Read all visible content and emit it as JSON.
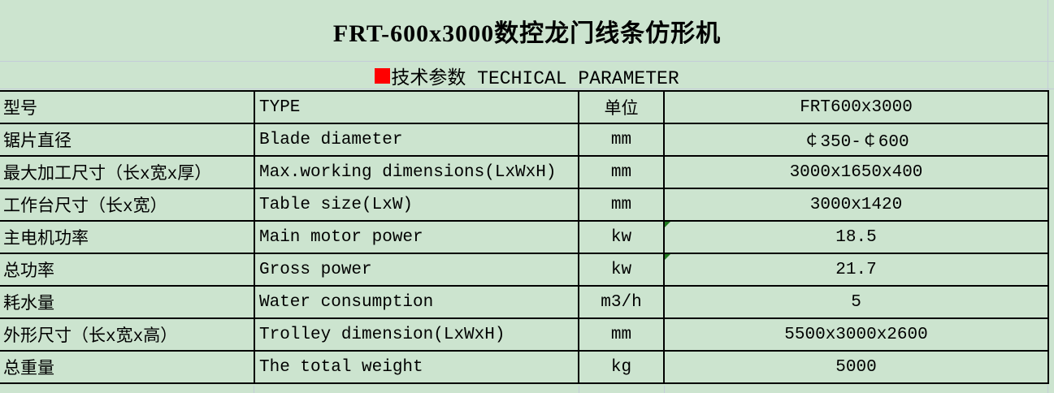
{
  "window": {
    "title": "FRT-600x3000数控龙门线条仿形机"
  },
  "section": {
    "marker_icon": "red-square",
    "label": "技术参数 TECHICAL PARAMETER"
  },
  "table": {
    "rows": [
      {
        "cn": "型号",
        "en": "TYPE",
        "unit": "单位",
        "value": "FRT600x3000",
        "text_flag": false
      },
      {
        "cn": "锯片直径",
        "en": "Blade diameter",
        "unit": "mm",
        "value": "￠350-￠600",
        "text_flag": false
      },
      {
        "cn": "最大加工尺寸（长x宽x厚）",
        "en": "Max.working dimensions(LxWxH)",
        "unit": "mm",
        "value": "3000x1650x400",
        "text_flag": false
      },
      {
        "cn": "工作台尺寸（长x宽）",
        "en": "Table size(LxW)",
        "unit": "mm",
        "value": "3000x1420",
        "text_flag": false
      },
      {
        "cn": "主电机功率",
        "en": "Main motor power",
        "unit": "kw",
        "value": "18.5",
        "text_flag": true
      },
      {
        "cn": "总功率",
        "en": "Gross power",
        "unit": "kw",
        "value": "21.7",
        "text_flag": true
      },
      {
        "cn": "耗水量",
        "en": "Water consumption",
        "unit": "m3/h",
        "value": "5",
        "text_flag": false
      },
      {
        "cn": "外形尺寸（长x宽x高）",
        "en": "Trolley dimension(LxWxH)",
        "unit": "mm",
        "value": "5500x3000x2600",
        "text_flag": false
      },
      {
        "cn": "总重量",
        "en": "The total weight",
        "unit": "kg",
        "value": "5000",
        "text_flag": false
      }
    ]
  },
  "colors": {
    "background": "#cce4cf",
    "grid_line": "#c4ccd8",
    "table_border": "#000000",
    "section_marker": "#ff0000",
    "flag_triangle": "#1f7a1f",
    "text": "#000000"
  }
}
